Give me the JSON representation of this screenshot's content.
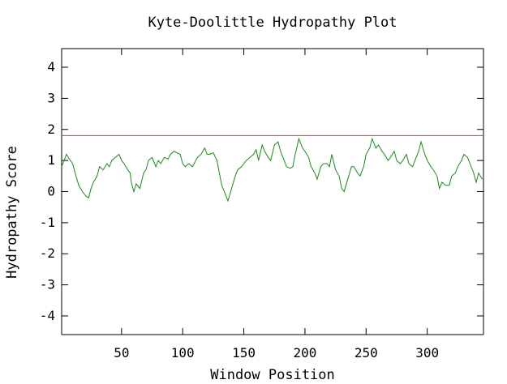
{
  "chart_data": {
    "type": "line",
    "title": "Kyte-Doolittle Hydropathy Plot",
    "xlabel": "Window Position",
    "ylabel": "Hydropathy Score",
    "xlim": [
      1,
      346
    ],
    "ylim": [
      -4.6,
      4.6
    ],
    "x_ticks": [
      50,
      100,
      150,
      200,
      250,
      300
    ],
    "y_ticks": [
      4,
      3,
      2,
      1,
      0,
      -1,
      -2,
      -3,
      -4
    ],
    "x_tick_labels": [
      "50",
      "100",
      "150",
      "200",
      "250",
      "300"
    ],
    "y_tick_labels": [
      "4",
      "3",
      "2",
      "1",
      "0",
      "-1",
      "-2",
      "-3",
      "-4"
    ],
    "grid": false,
    "threshold": {
      "y": 1.8,
      "color": "#e03030"
    },
    "series": [
      {
        "color": "#1a8a1a",
        "x": [
          1,
          5,
          8,
          10,
          12,
          15,
          18,
          21,
          23,
          25,
          27,
          30,
          32,
          35,
          38,
          40,
          42,
          45,
          48,
          50,
          52,
          55,
          57,
          58,
          60,
          62,
          65,
          68,
          70,
          72,
          75,
          78,
          80,
          82,
          85,
          88,
          90,
          93,
          95,
          98,
          100,
          102,
          105,
          108,
          110,
          112,
          115,
          118,
          120,
          122,
          125,
          128,
          130,
          132,
          135,
          137,
          140,
          143,
          145,
          148,
          150,
          152,
          155,
          158,
          160,
          162,
          165,
          167,
          170,
          172,
          175,
          178,
          180,
          183,
          185,
          188,
          190,
          192,
          195,
          198,
          200,
          203,
          205,
          208,
          210,
          213,
          215,
          218,
          220,
          222,
          225,
          228,
          230,
          232,
          235,
          238,
          240,
          243,
          245,
          248,
          250,
          253,
          255,
          258,
          260,
          263,
          265,
          268,
          270,
          273,
          275,
          278,
          280,
          283,
          285,
          288,
          290,
          293,
          295,
          298,
          300,
          303,
          305,
          308,
          310,
          312,
          315,
          318,
          320,
          323,
          325,
          328,
          330,
          333,
          335,
          338,
          340,
          342,
          345
        ],
        "y": [
          0.8,
          1.2,
          1.0,
          0.9,
          0.6,
          0.2,
          0.0,
          -0.15,
          -0.2,
          0.1,
          0.3,
          0.5,
          0.8,
          0.7,
          0.9,
          0.8,
          1.0,
          1.1,
          1.2,
          1.0,
          0.9,
          0.7,
          0.6,
          0.3,
          0.0,
          0.25,
          0.1,
          0.6,
          0.7,
          1.0,
          1.1,
          0.8,
          1.0,
          0.9,
          1.1,
          1.05,
          1.2,
          1.3,
          1.25,
          1.2,
          0.9,
          0.8,
          0.9,
          0.8,
          0.95,
          1.1,
          1.2,
          1.4,
          1.2,
          1.2,
          1.25,
          1.0,
          0.6,
          0.2,
          -0.1,
          -0.3,
          0.1,
          0.5,
          0.7,
          0.8,
          0.9,
          1.0,
          1.1,
          1.2,
          1.35,
          1.0,
          1.5,
          1.3,
          1.1,
          1.0,
          1.5,
          1.6,
          1.3,
          1.0,
          0.8,
          0.75,
          0.8,
          1.2,
          1.7,
          1.4,
          1.3,
          1.1,
          0.8,
          0.6,
          0.4,
          0.8,
          0.9,
          0.9,
          0.8,
          1.2,
          0.7,
          0.5,
          0.1,
          0.0,
          0.4,
          0.8,
          0.8,
          0.6,
          0.5,
          0.8,
          1.2,
          1.4,
          1.7,
          1.4,
          1.5,
          1.3,
          1.2,
          1.0,
          1.1,
          1.3,
          1.0,
          0.9,
          1.0,
          1.2,
          0.9,
          0.8,
          1.0,
          1.3,
          1.6,
          1.2,
          1.0,
          0.8,
          0.7,
          0.5,
          0.1,
          0.3,
          0.2,
          0.2,
          0.5,
          0.6,
          0.8,
          1.0,
          1.2,
          1.1,
          0.9,
          0.6,
          0.3,
          0.6,
          0.4
        ]
      }
    ]
  }
}
